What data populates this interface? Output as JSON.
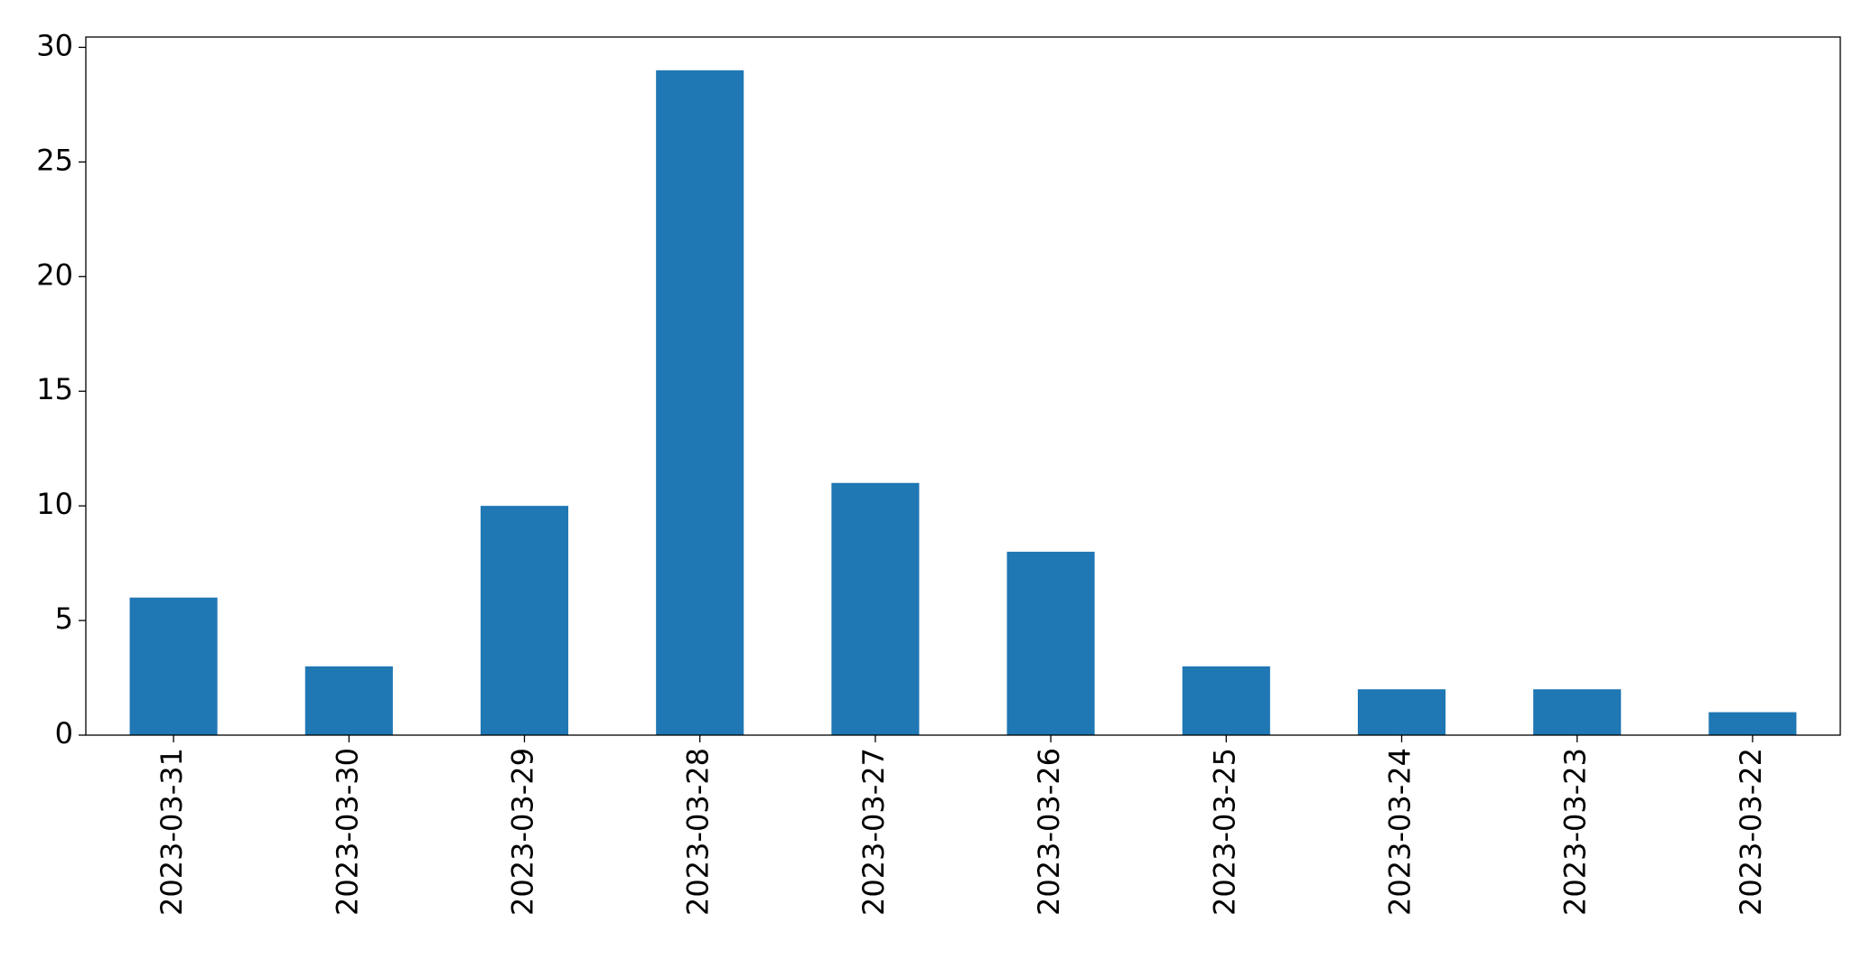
{
  "chart_data": {
    "type": "bar",
    "categories": [
      "2023-03-31",
      "2023-03-30",
      "2023-03-29",
      "2023-03-28",
      "2023-03-27",
      "2023-03-26",
      "2023-03-25",
      "2023-03-24",
      "2023-03-23",
      "2023-03-22"
    ],
    "values": [
      6,
      3,
      10,
      29,
      11,
      8,
      3,
      2,
      2,
      1
    ],
    "color": "#1f77b4",
    "ylim": [
      0,
      30.45
    ],
    "yticks": [
      0,
      5,
      10,
      15,
      20,
      25,
      30
    ],
    "grid": false
  }
}
